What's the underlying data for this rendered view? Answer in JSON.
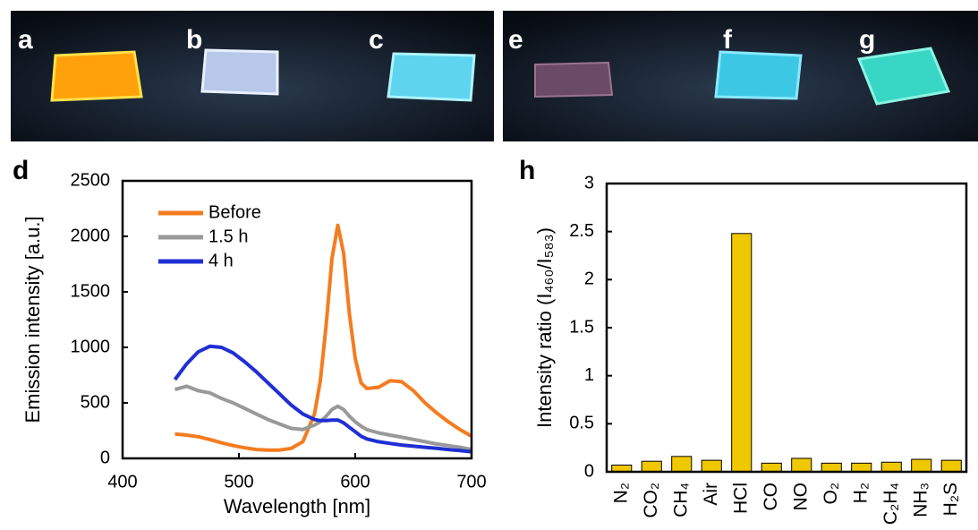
{
  "photos": {
    "labels": [
      "a",
      "b",
      "c",
      "e",
      "f",
      "g"
    ]
  },
  "chart_data": [
    {
      "type": "line",
      "panel": "d",
      "x_label": "Wavelength [nm]",
      "y_label": "Emission intensity [a.u.]",
      "x": [
        445,
        455,
        465,
        475,
        485,
        495,
        505,
        515,
        525,
        535,
        545,
        555,
        565,
        570,
        575,
        580,
        585,
        590,
        595,
        600,
        605,
        610,
        620,
        630,
        640,
        650,
        660,
        670,
        680,
        690,
        700
      ],
      "series": [
        {
          "name": "Before",
          "color": "#f47c20",
          "values": [
            220,
            210,
            195,
            170,
            140,
            115,
            95,
            80,
            75,
            75,
            90,
            150,
            400,
            700,
            1200,
            1800,
            2100,
            1850,
            1300,
            900,
            680,
            630,
            640,
            700,
            690,
            610,
            500,
            410,
            330,
            260,
            200
          ]
        },
        {
          "name": "1.5 h",
          "color": "#999999",
          "values": [
            620,
            650,
            610,
            590,
            540,
            500,
            450,
            400,
            350,
            310,
            270,
            260,
            300,
            330,
            380,
            440,
            470,
            440,
            380,
            330,
            290,
            260,
            230,
            210,
            190,
            170,
            150,
            130,
            115,
            100,
            80
          ]
        },
        {
          "name": "4 h",
          "color": "#1f2fd4",
          "values": [
            710,
            850,
            960,
            1010,
            1000,
            950,
            870,
            780,
            680,
            580,
            480,
            400,
            350,
            340,
            340,
            345,
            345,
            320,
            280,
            240,
            200,
            175,
            150,
            135,
            120,
            110,
            100,
            90,
            80,
            70,
            60
          ]
        }
      ],
      "xlim": [
        400,
        700
      ],
      "xticks": [
        400,
        500,
        600,
        700
      ],
      "ylim": [
        0,
        2500
      ],
      "yticks": [
        0,
        500,
        1000,
        1500,
        2000,
        2500
      ],
      "legend": "upper-left"
    },
    {
      "type": "bar",
      "panel": "h",
      "y_label": "Intensity ratio (I₄₆₀/I₅₈₃)",
      "categories": [
        "N₂",
        "CO₂",
        "CH₄",
        "Air",
        "HCl",
        "CO",
        "NO",
        "O₂",
        "H₂",
        "C₂H₄",
        "NH₃",
        "H₂S"
      ],
      "values": [
        0.07,
        0.11,
        0.16,
        0.12,
        2.48,
        0.09,
        0.14,
        0.09,
        0.09,
        0.1,
        0.13,
        0.12
      ],
      "color": "#f0c800",
      "ylim": [
        0,
        3
      ],
      "yticks": [
        0,
        0.5,
        1,
        1.5,
        2,
        2.5,
        3
      ]
    }
  ]
}
